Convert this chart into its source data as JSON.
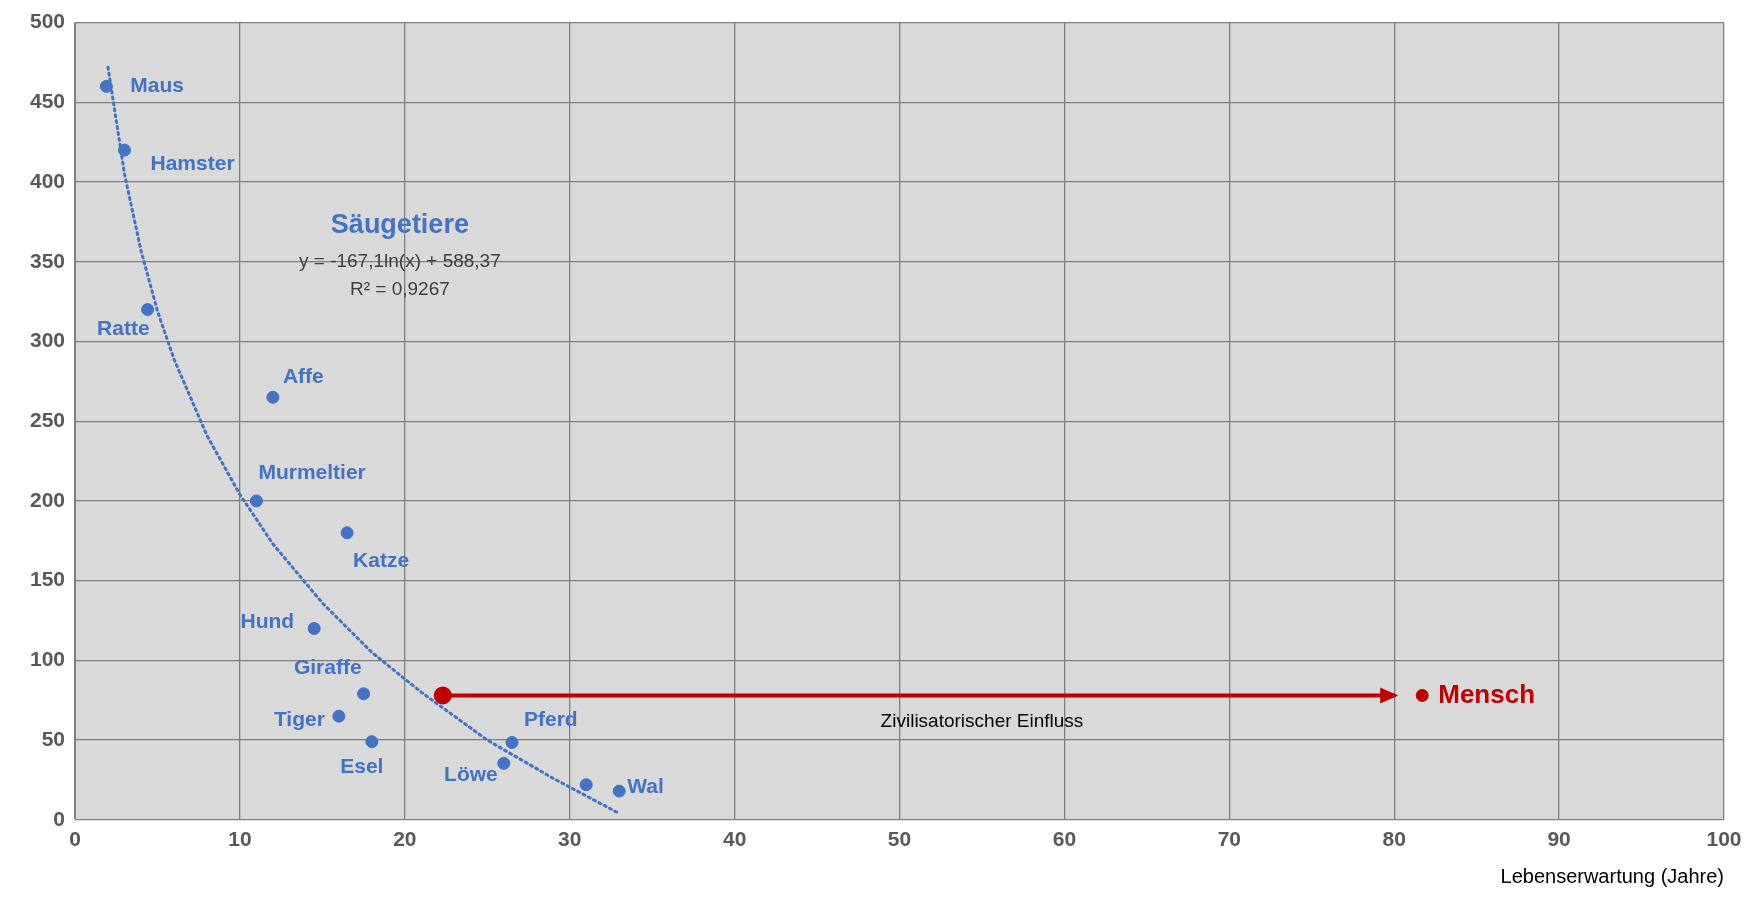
{
  "chart_data": {
    "type": "scatter",
    "xlabel": "Lebenserwartung (Jahre)",
    "xlim": [
      0,
      100
    ],
    "xticks": [
      0,
      10,
      20,
      30,
      40,
      50,
      60,
      70,
      80,
      90,
      100
    ],
    "ylim": [
      0,
      500
    ],
    "yticks": [
      0,
      50,
      100,
      150,
      200,
      250,
      300,
      350,
      400,
      450,
      500
    ],
    "grid": true,
    "series": [
      {
        "name": "Säugetiere",
        "marker": "circle",
        "color": "#4472c4",
        "x": [
          1.9,
          3,
          4.4,
          12,
          11,
          16.5,
          14.5,
          17.5,
          16,
          18,
          26.5,
          26,
          31,
          33
        ],
        "values": [
          460,
          420,
          320,
          265,
          200,
          180,
          120,
          79,
          65,
          49,
          48.5,
          35.4,
          22,
          18
        ]
      },
      {
        "type": "line",
        "line_style": "dotted",
        "marker": "none",
        "color": "#4472c4",
        "x": [
          2,
          3,
          4,
          5,
          6,
          8,
          10,
          12,
          15,
          18,
          21,
          25,
          29,
          33
        ],
        "values": [
          472,
          405,
          357,
          319,
          289,
          241,
          204,
          173,
          136,
          105,
          80,
          50,
          26,
          4
        ]
      },
      {
        "type": "line",
        "line_style": "solid",
        "marker": "circle",
        "color": "#c00000",
        "x": [
          22.3,
          80
        ],
        "values": [
          78,
          78
        ]
      },
      {
        "name": "Mensch",
        "marker": "circle",
        "color": "#c00000",
        "x": [
          81.7
        ],
        "values": [
          78
        ]
      }
    ],
    "annotations": [
      {
        "text": "Maus",
        "x": 1.9,
        "y": 460
      },
      {
        "text": "Hamster",
        "x": 3,
        "y": 420
      },
      {
        "text": "Ratte",
        "x": 4.4,
        "y": 320
      },
      {
        "text": "Affe",
        "x": 12,
        "y": 265
      },
      {
        "text": "Murmeltier",
        "x": 11,
        "y": 200
      },
      {
        "text": "Katze",
        "x": 16.5,
        "y": 180
      },
      {
        "text": "Hund",
        "x": 14.5,
        "y": 120
      },
      {
        "text": "Giraffe",
        "x": 17.5,
        "y": 79
      },
      {
        "text": "Tiger",
        "x": 16,
        "y": 65
      },
      {
        "text": "Esel",
        "x": 18,
        "y": 49
      },
      {
        "text": "Pferd",
        "x": 26.5,
        "y": 48.5
      },
      {
        "text": "Löwe",
        "x": 26,
        "y": 35.4
      },
      {
        "text": "Wal",
        "x": 33,
        "y": 18
      },
      "y = -167,1ln(x) + 588,37",
      "R² = 0,9267",
      {
        "text": "Zivilisatorischer Einfluss",
        "x": 55,
        "y": 78
      }
    ]
  }
}
